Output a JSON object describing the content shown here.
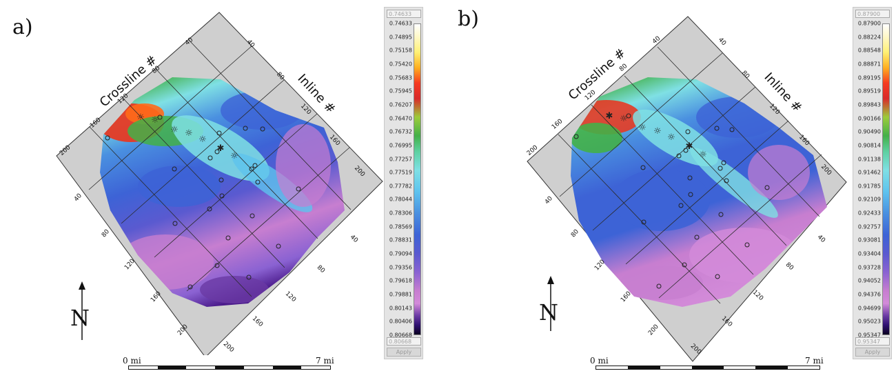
{
  "panels": [
    {
      "letter": "a)",
      "crossline_label": "Crossline #",
      "inline_label": "Inline #",
      "crossline_ticks": [
        "40",
        "80",
        "120",
        "160",
        "200"
      ],
      "inline_ticks": [
        "40",
        "80",
        "120",
        "160",
        "200"
      ],
      "legend": {
        "top_value": "0.74633",
        "bottom_value": "0.80668",
        "apply_label": "Apply",
        "ticks": [
          "0.74633",
          "0.74895",
          "0.75158",
          "0.75420",
          "0.75683",
          "0.75945",
          "0.76207",
          "0.76470",
          "0.76732",
          "0.76995",
          "0.77257",
          "0.77519",
          "0.77782",
          "0.78044",
          "0.78306",
          "0.78569",
          "0.78831",
          "0.79094",
          "0.79356",
          "0.79618",
          "0.79881",
          "0.80143",
          "0.80406",
          "0.80668"
        ]
      },
      "scale": {
        "left_label": "0 mi",
        "right_label": "7 mi"
      },
      "north_label": "N"
    },
    {
      "letter": "b)",
      "crossline_label": "Crossline #",
      "inline_label": "Inline #",
      "crossline_ticks": [
        "40",
        "80",
        "120",
        "160",
        "200"
      ],
      "inline_ticks": [
        "40",
        "80",
        "120",
        "160",
        "200"
      ],
      "legend": {
        "top_value": "0.87900",
        "bottom_value": "0.95347",
        "apply_label": "Apply",
        "ticks": [
          "0.87900",
          "0.88224",
          "0.88548",
          "0.88871",
          "0.89195",
          "0.89519",
          "0.89843",
          "0.90166",
          "0.90490",
          "0.90814",
          "0.91138",
          "0.91462",
          "0.91785",
          "0.92109",
          "0.92433",
          "0.92757",
          "0.93081",
          "0.93404",
          "0.93728",
          "0.94052",
          "0.94376",
          "0.94699",
          "0.95023",
          "0.95347"
        ]
      },
      "scale": {
        "left_label": "0 mi",
        "right_label": "7 mi"
      },
      "north_label": "N"
    }
  ],
  "colors": {
    "frame_gray": "#c8c8c8",
    "grid_line": "#2a2a2a",
    "well_marker": "#222222"
  },
  "icons": [
    "north-arrow-icon",
    "well-circle-icon",
    "injector-star-icon"
  ]
}
